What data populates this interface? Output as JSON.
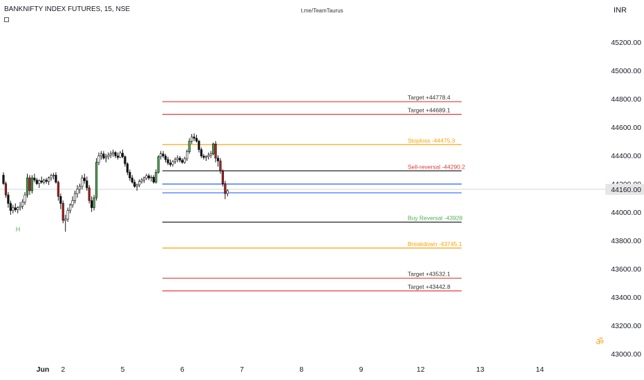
{
  "header": {
    "symbol": "BANKNIFTY INDEX FUTURES, 15, NSE",
    "watermark": "t.me/TeamTaurus",
    "currency": "INR",
    "indicator_icon": "indicator-box-icon",
    "om_icon": "om-symbol-icon",
    "om_glyph": "ॐ"
  },
  "colors": {
    "up": "#4caf50",
    "down": "#b71c1c",
    "target": "#e53935",
    "stoploss": "#ffa000",
    "reversal": "#222222",
    "blue": "#2962ff",
    "crosshair": "#d1d4dc"
  },
  "chart_data": {
    "type": "candlestick",
    "yrange": [
      42950,
      45350
    ],
    "price_ticks": [
      "45200.00",
      "45000.00",
      "44800.00",
      "44600.00",
      "44400.00",
      "44200.00",
      "44000.00",
      "43800.00",
      "43600.00",
      "43400.00",
      "43200.00",
      "43000.00"
    ],
    "price_tick_values": [
      45200,
      45000,
      44800,
      44600,
      44400,
      44200,
      44000,
      43800,
      43600,
      43400,
      43200,
      43000
    ],
    "current_price": "44160.00",
    "current_price_value": 44160,
    "time_ticks": [
      {
        "label": "Jun",
        "bar": 0,
        "bold": true
      },
      {
        "label": "2",
        "bar": 25
      },
      {
        "label": "5",
        "bar": 50
      },
      {
        "label": "6",
        "bar": 75
      },
      {
        "label": "7",
        "bar": 100
      },
      {
        "label": "8",
        "bar": 125
      },
      {
        "label": "9",
        "bar": 150
      },
      {
        "label": "12",
        "bar": 175
      },
      {
        "label": "13",
        "bar": 200
      },
      {
        "label": "14",
        "bar": 225
      }
    ],
    "levels": [
      {
        "label": "Target +44778.4",
        "price": 44778.4,
        "kind": "target"
      },
      {
        "label": "Target +44689.1",
        "price": 44689.1,
        "kind": "target"
      },
      {
        "label": "Stoploss -44475.3",
        "price": 44475.3,
        "kind": "stoploss"
      },
      {
        "label": "Sell-reversal -44290.2",
        "price": 44290.2,
        "kind": "sell"
      },
      {
        "label": "",
        "price": 44197,
        "kind": "blue"
      },
      {
        "label": "",
        "price": 44135,
        "kind": "blue"
      },
      {
        "label": "Buy Reversal -43928",
        "price": 43928,
        "kind": "buy"
      },
      {
        "label": "Breakdown -43745.1",
        "price": 43745.1,
        "kind": "stoploss"
      },
      {
        "label": "Target +43532.1",
        "price": 43532.1,
        "kind": "target"
      },
      {
        "label": "Target +43442.8",
        "price": 43442.8,
        "kind": "target"
      }
    ],
    "pivot_label": {
      "text": "H",
      "bar": 6,
      "price": 43920
    },
    "candles": [
      [
        44260,
        44280,
        44190,
        44200
      ],
      [
        44200,
        44215,
        44100,
        44120
      ],
      [
        44120,
        44140,
        44030,
        44060
      ],
      [
        44060,
        44080,
        43980,
        44010
      ],
      [
        44010,
        44050,
        43990,
        44030
      ],
      [
        44030,
        44060,
        44000,
        44015
      ],
      [
        44015,
        44040,
        43990,
        44030
      ],
      [
        44030,
        44070,
        44010,
        44040
      ],
      [
        44040,
        44090,
        44020,
        44070
      ],
      [
        44070,
        44140,
        44050,
        44120
      ],
      [
        44120,
        44270,
        44100,
        44240
      ],
      [
        44240,
        44260,
        44120,
        44150
      ],
      [
        44150,
        44260,
        44130,
        44240
      ],
      [
        44240,
        44270,
        44210,
        44225
      ],
      [
        44225,
        44240,
        44190,
        44200
      ],
      [
        44200,
        44230,
        44170,
        44220
      ],
      [
        44220,
        44250,
        44200,
        44210
      ],
      [
        44210,
        44235,
        44195,
        44225
      ],
      [
        44225,
        44240,
        44200,
        44215
      ],
      [
        44215,
        44250,
        44190,
        44240
      ],
      [
        44240,
        44270,
        44220,
        44255
      ],
      [
        44255,
        44275,
        44230,
        44260
      ],
      [
        44260,
        44280,
        44200,
        44210
      ],
      [
        44210,
        44220,
        44080,
        44110
      ],
      [
        44110,
        44130,
        44020,
        44060
      ],
      [
        44060,
        44080,
        43920,
        43940
      ],
      [
        43940,
        43980,
        43860,
        43950
      ],
      [
        43950,
        44030,
        43930,
        44010
      ],
      [
        44010,
        44060,
        43990,
        44050
      ],
      [
        44050,
        44110,
        44030,
        44080
      ],
      [
        44080,
        44150,
        44060,
        44130
      ],
      [
        44130,
        44190,
        44100,
        44160
      ],
      [
        44160,
        44200,
        44130,
        44180
      ],
      [
        44180,
        44260,
        44160,
        44240
      ],
      [
        44240,
        44270,
        44200,
        44220
      ],
      [
        44220,
        44250,
        44150,
        44170
      ],
      [
        44170,
        44190,
        44060,
        44080
      ],
      [
        44080,
        44110,
        44000,
        44030
      ],
      [
        44030,
        44120,
        44010,
        44100
      ],
      [
        44100,
        44380,
        44080,
        44350
      ],
      [
        44350,
        44420,
        44330,
        44395
      ],
      [
        44395,
        44430,
        44370,
        44410
      ],
      [
        44410,
        44430,
        44370,
        44380
      ],
      [
        44380,
        44410,
        44350,
        44390
      ],
      [
        44390,
        44420,
        44370,
        44400
      ],
      [
        44400,
        44430,
        44380,
        44410
      ],
      [
        44410,
        44440,
        44390,
        44420
      ],
      [
        44420,
        44430,
        44380,
        44395
      ],
      [
        44395,
        44420,
        44370,
        44385
      ],
      [
        44385,
        44430,
        44380,
        44415
      ],
      [
        44415,
        44440,
        44380,
        44390
      ],
      [
        44390,
        44400,
        44320,
        44340
      ],
      [
        44340,
        44350,
        44260,
        44280
      ],
      [
        44280,
        44300,
        44220,
        44240
      ],
      [
        44240,
        44260,
        44200,
        44210
      ],
      [
        44210,
        44230,
        44170,
        44180
      ],
      [
        44180,
        44200,
        44150,
        44190
      ],
      [
        44190,
        44230,
        44175,
        44215
      ],
      [
        44215,
        44240,
        44200,
        44225
      ],
      [
        44225,
        44250,
        44205,
        44240
      ],
      [
        44240,
        44270,
        44225,
        44255
      ],
      [
        44255,
        44270,
        44225,
        44240
      ],
      [
        44240,
        44260,
        44215,
        44245
      ],
      [
        44245,
        44260,
        44200,
        44210
      ],
      [
        44210,
        44300,
        44200,
        44280
      ],
      [
        44280,
        44400,
        44270,
        44390
      ],
      [
        44390,
        44430,
        44370,
        44410
      ],
      [
        44410,
        44430,
        44380,
        44395
      ],
      [
        44395,
        44410,
        44350,
        44370
      ],
      [
        44370,
        44390,
        44330,
        44345
      ],
      [
        44345,
        44370,
        44320,
        44335
      ],
      [
        44335,
        44365,
        44320,
        44355
      ],
      [
        44355,
        44385,
        44340,
        44370
      ],
      [
        44370,
        44400,
        44350,
        44380
      ],
      [
        44380,
        44395,
        44350,
        44365
      ],
      [
        44365,
        44380,
        44340,
        44350
      ],
      [
        44350,
        44390,
        44340,
        44375
      ],
      [
        44375,
        44440,
        44360,
        44425
      ],
      [
        44425,
        44520,
        44410,
        44500
      ],
      [
        44500,
        44550,
        44480,
        44530
      ],
      [
        44530,
        44555,
        44500,
        44520
      ],
      [
        44520,
        44545,
        44490,
        44500
      ],
      [
        44500,
        44510,
        44420,
        44440
      ],
      [
        44440,
        44455,
        44380,
        44395
      ],
      [
        44395,
        44410,
        44370,
        44385
      ],
      [
        44385,
        44400,
        44360,
        44390
      ],
      [
        44390,
        44420,
        44370,
        44400
      ],
      [
        44400,
        44430,
        44380,
        44410
      ],
      [
        44410,
        44490,
        44400,
        44480
      ],
      [
        44480,
        44500,
        44350,
        44380
      ],
      [
        44380,
        44400,
        44320,
        44360
      ],
      [
        44360,
        44380,
        44270,
        44290
      ],
      [
        44290,
        44300,
        44180,
        44200
      ],
      [
        44200,
        44220,
        44090,
        44130
      ],
      [
        44130,
        44160,
        44110,
        44150
      ]
    ]
  }
}
